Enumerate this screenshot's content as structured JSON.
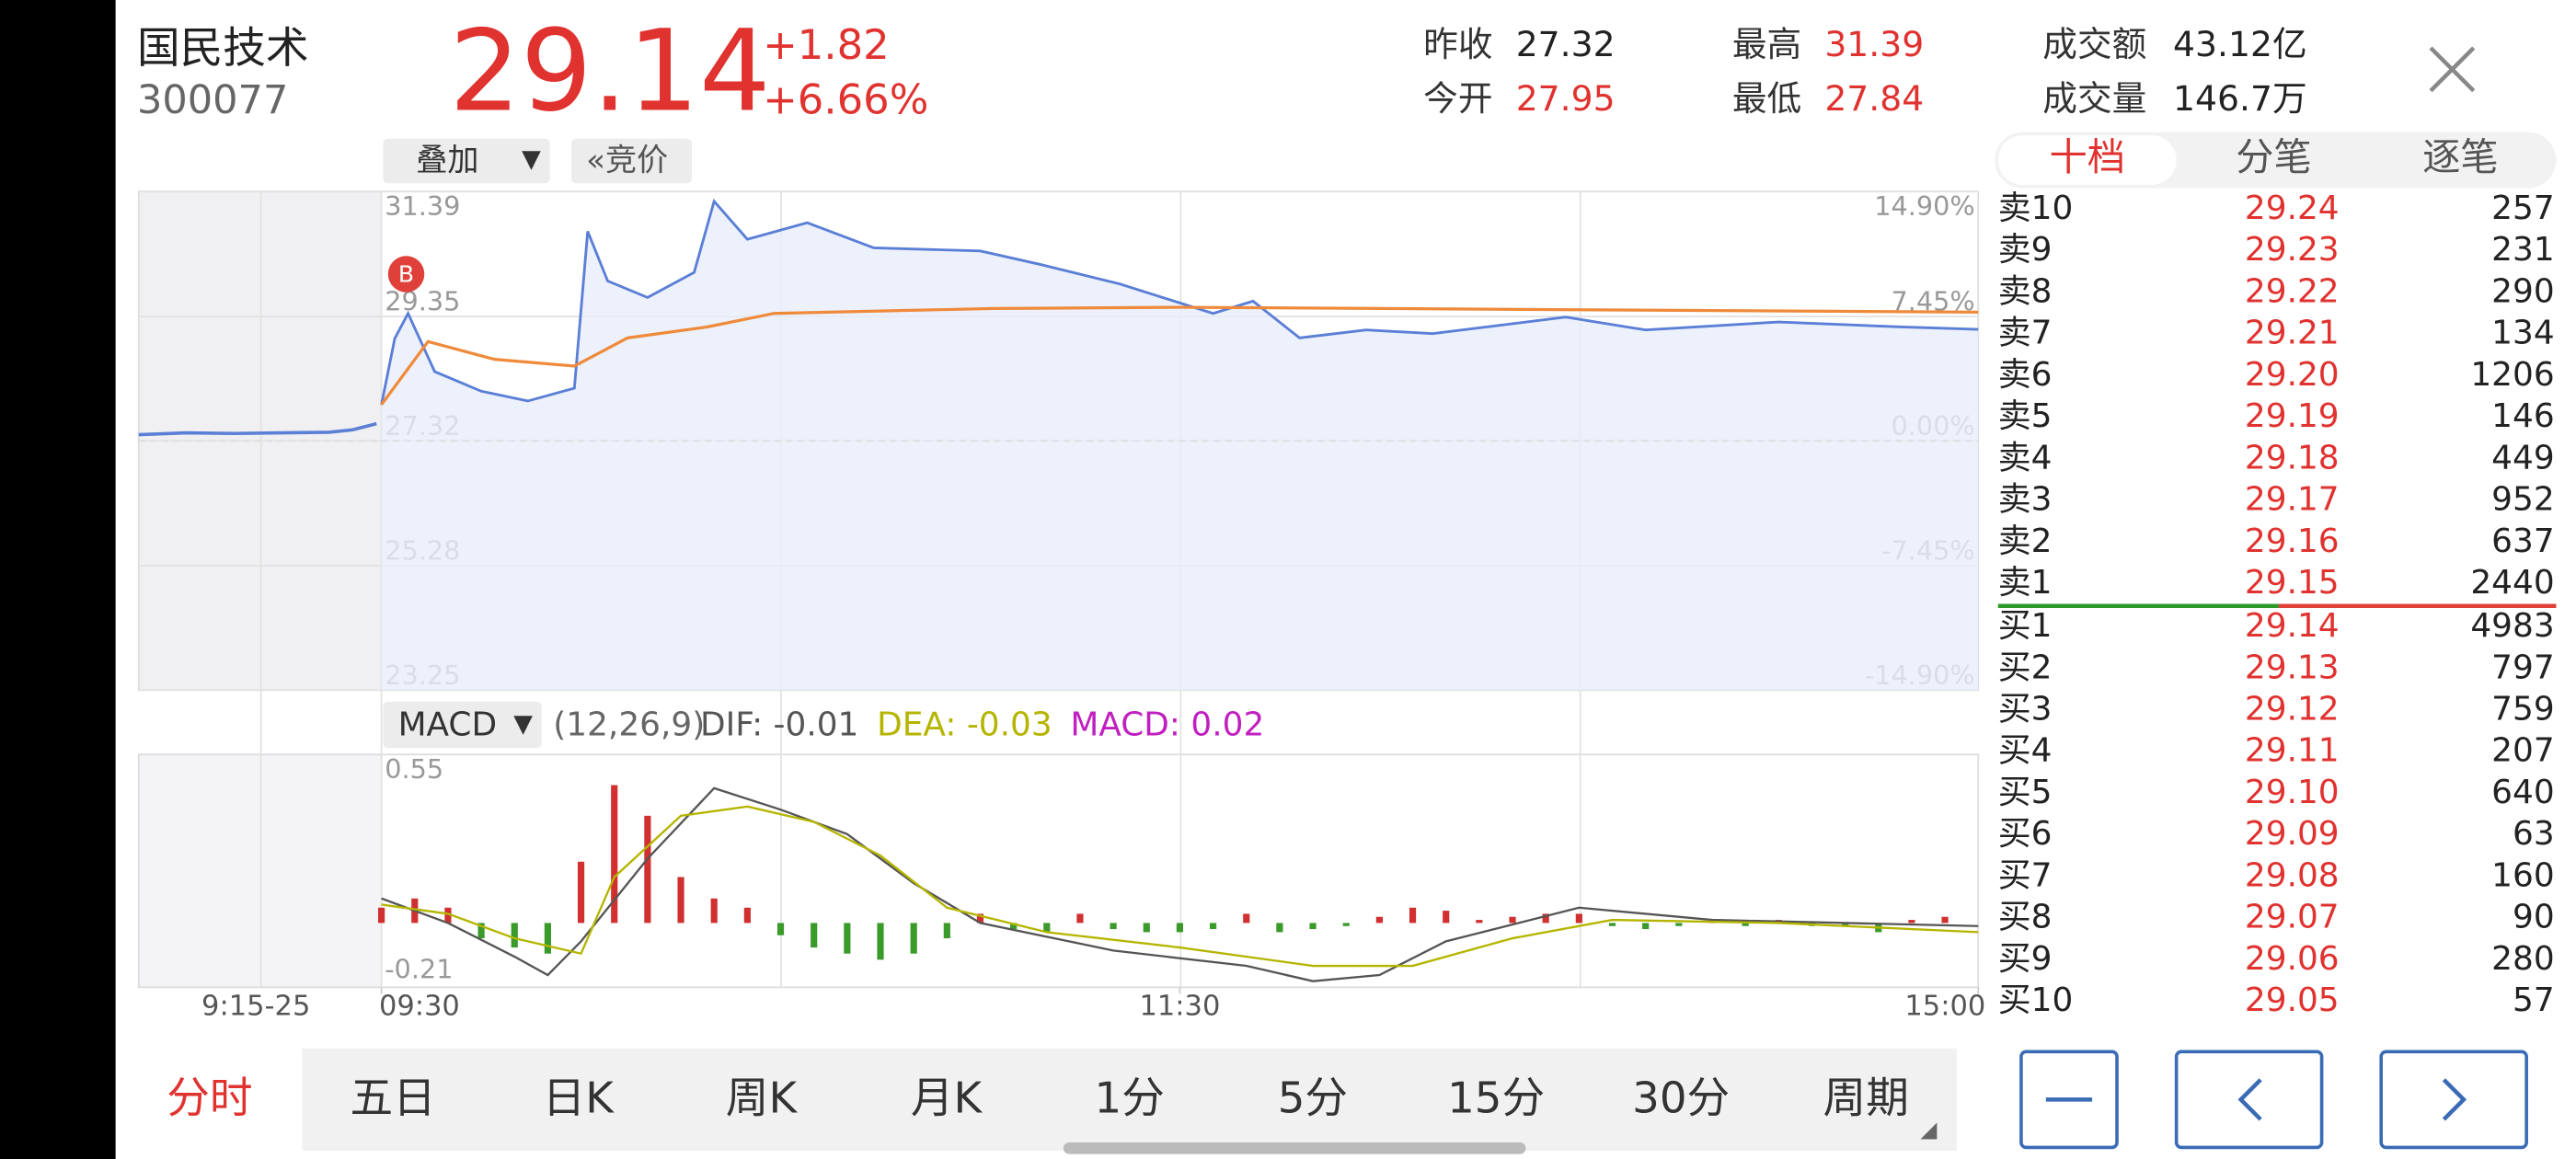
{
  "header": {
    "name": "国民技术",
    "code": "300077",
    "price": 29.14,
    "change": "+1.82",
    "change_pct": "+6.66%",
    "stats": [
      {
        "label": "昨收",
        "value": "27.32",
        "red": false
      },
      {
        "label": "今开",
        "value": "27.95",
        "red": true
      },
      {
        "label": "最高",
        "value": "31.39",
        "red": true
      },
      {
        "label": "最低",
        "value": "27.84",
        "red": true
      },
      {
        "label": "成交额",
        "value": "43.12亿",
        "red": false
      },
      {
        "label": "成交量",
        "value": "146.7万",
        "red": false
      }
    ]
  },
  "toolbar": {
    "overlay": "叠加",
    "overlay_arrow": "▼",
    "auction": "«竞价"
  },
  "book_tabs": [
    "十档",
    "分笔",
    "逐笔"
  ],
  "chart_data": [
    {
      "type": "line",
      "annotation": "B",
      "premarket_label": "9:15-25",
      "xlim": [
        0,
        240
      ],
      "xticks": [
        {
          "value": 0,
          "label": "09:30"
        },
        {
          "value": 120,
          "label": "11:30"
        },
        {
          "value": 240,
          "label": "15:00"
        }
      ],
      "ylim": [
        23.25,
        31.39
      ],
      "yticks": [
        31.39,
        29.35,
        27.32,
        25.28,
        23.25
      ],
      "y2lim": [
        -14.9,
        14.9
      ],
      "y2ticks": [
        {
          "value": 14.9,
          "label": "14.90%"
        },
        {
          "value": 7.45,
          "label": "7.45%"
        },
        {
          "value": 0,
          "label": "0.00%"
        },
        {
          "value": -7.45,
          "label": "-7.45%"
        },
        {
          "value": -14.9,
          "label": "-14.90%"
        }
      ],
      "auction_xlim": [
        0,
        10
      ],
      "auction": {
        "x": [
          0,
          2,
          4,
          6,
          8,
          9,
          10
        ],
        "values": [
          27.42,
          27.45,
          27.44,
          27.45,
          27.46,
          27.5,
          27.6
        ],
        "color": "#5b7fd6"
      },
      "series": [
        {
          "name": "价格",
          "color": "#5b7fd6",
          "x": [
            0,
            2,
            4,
            8,
            15,
            22,
            29,
            31,
            34,
            40,
            47,
            50,
            55,
            64,
            74,
            90,
            99,
            111,
            125,
            131,
            138,
            148,
            158,
            178,
            190,
            210,
            228,
            240
          ],
          "values": [
            27.91,
            28.99,
            29.4,
            28.45,
            28.13,
            27.97,
            28.18,
            30.74,
            29.93,
            29.66,
            30.07,
            31.23,
            30.61,
            30.88,
            30.47,
            30.42,
            30.2,
            29.88,
            29.4,
            29.6,
            29.0,
            29.13,
            29.07,
            29.34,
            29.13,
            29.26,
            29.18,
            29.14
          ]
        },
        {
          "name": "均价",
          "color": "#ef8a3a",
          "x": [
            0,
            7,
            17,
            29,
            37,
            49,
            59,
            92,
            120,
            240
          ],
          "values": [
            27.91,
            28.94,
            28.65,
            28.54,
            29.0,
            29.18,
            29.4,
            29.48,
            29.5,
            29.42
          ]
        }
      ]
    },
    {
      "type": "bar",
      "indicator": "MACD",
      "indicator_arrow": "▼",
      "params": "(12,26,9)",
      "xlim": [
        0,
        240
      ],
      "ylim": [
        -0.21,
        0.55
      ],
      "yticks": [
        0.55,
        -0.21
      ],
      "up_color": "#d03030",
      "down_color": "#3a9a2a",
      "x": [
        0,
        5,
        10,
        15,
        20,
        25,
        30,
        35,
        40,
        45,
        50,
        55,
        60,
        65,
        70,
        75,
        80,
        85,
        90,
        95,
        100,
        105,
        110,
        115,
        120,
        125,
        130,
        135,
        140,
        145,
        150,
        155,
        160,
        165,
        170,
        175,
        180,
        185,
        190,
        195,
        200,
        205,
        210,
        215,
        220,
        225,
        230,
        235
      ],
      "values": [
        0.05,
        0.08,
        0.05,
        -0.05,
        -0.08,
        -0.1,
        0.2,
        0.45,
        0.35,
        0.15,
        0.08,
        0.05,
        -0.04,
        -0.08,
        -0.1,
        -0.12,
        -0.1,
        -0.05,
        0.03,
        -0.02,
        -0.03,
        0.03,
        -0.02,
        -0.03,
        -0.03,
        -0.02,
        0.03,
        -0.03,
        -0.02,
        -0.01,
        0.02,
        0.05,
        0.04,
        0.01,
        0.02,
        0.03,
        0.03,
        -0.01,
        -0.02,
        -0.01,
        0.01,
        -0.01,
        0.01,
        -0.01,
        -0.01,
        -0.03,
        0.01,
        0.02
      ],
      "legend": [
        {
          "text": "DIF: -0.01",
          "color": "#555555"
        },
        {
          "text": "DEA: -0.03",
          "color": "#b5b500"
        },
        {
          "text": "MACD: 0.02",
          "color": "#c020c0"
        }
      ],
      "series": [
        {
          "name": "DIF",
          "color": "#555555",
          "x": [
            0,
            10,
            20,
            25,
            30,
            40,
            50,
            60,
            70,
            80,
            90,
            110,
            130,
            140,
            150,
            160,
            180,
            200,
            240
          ],
          "values": [
            0.08,
            0.0,
            -0.11,
            -0.17,
            -0.06,
            0.21,
            0.44,
            0.37,
            0.29,
            0.13,
            0.0,
            -0.09,
            -0.14,
            -0.19,
            -0.17,
            -0.06,
            0.05,
            0.01,
            -0.01
          ]
        },
        {
          "name": "DEA",
          "color": "#b5b500",
          "x": [
            0,
            10,
            20,
            30,
            35,
            45,
            55,
            65,
            75,
            85,
            100,
            120,
            140,
            155,
            170,
            185,
            210,
            240
          ],
          "values": [
            0.06,
            0.03,
            -0.05,
            -0.1,
            0.15,
            0.35,
            0.38,
            0.33,
            0.22,
            0.05,
            -0.03,
            -0.08,
            -0.14,
            -0.14,
            -0.05,
            0.01,
            0.0,
            -0.03
          ]
        }
      ]
    }
  ],
  "order_book": {
    "rows": [
      {
        "label": "卖10",
        "price": "29.24",
        "volume": 257
      },
      {
        "label": "卖9",
        "price": "29.23",
        "volume": 231
      },
      {
        "label": "卖8",
        "price": "29.22",
        "volume": 290
      },
      {
        "label": "卖7",
        "price": "29.21",
        "volume": 134
      },
      {
        "label": "卖6",
        "price": "29.20",
        "volume": 1206
      },
      {
        "label": "卖5",
        "price": "29.19",
        "volume": 146
      },
      {
        "label": "卖4",
        "price": "29.18",
        "volume": 449
      },
      {
        "label": "卖3",
        "price": "29.17",
        "volume": 952
      },
      {
        "label": "卖2",
        "price": "29.16",
        "volume": 637
      },
      {
        "label": "卖1",
        "price": "29.15",
        "volume": 2440
      },
      {
        "label": "买1",
        "price": "29.14",
        "volume": 4983
      },
      {
        "label": "买2",
        "price": "29.13",
        "volume": 797
      },
      {
        "label": "买3",
        "price": "29.12",
        "volume": 759
      },
      {
        "label": "买4",
        "price": "29.11",
        "volume": 207
      },
      {
        "label": "买5",
        "price": "29.10",
        "volume": 640
      },
      {
        "label": "买6",
        "price": "29.09",
        "volume": 63
      },
      {
        "label": "买7",
        "price": "29.08",
        "volume": 160
      },
      {
        "label": "买8",
        "price": "29.07",
        "volume": 90
      },
      {
        "label": "买9",
        "price": "29.06",
        "volume": 280
      },
      {
        "label": "买10",
        "price": "29.05",
        "volume": 57
      }
    ]
  },
  "period_tabs": [
    "分时",
    "五日",
    "日K",
    "周K",
    "月K",
    "1分",
    "5分",
    "15分",
    "30分",
    "周期"
  ]
}
